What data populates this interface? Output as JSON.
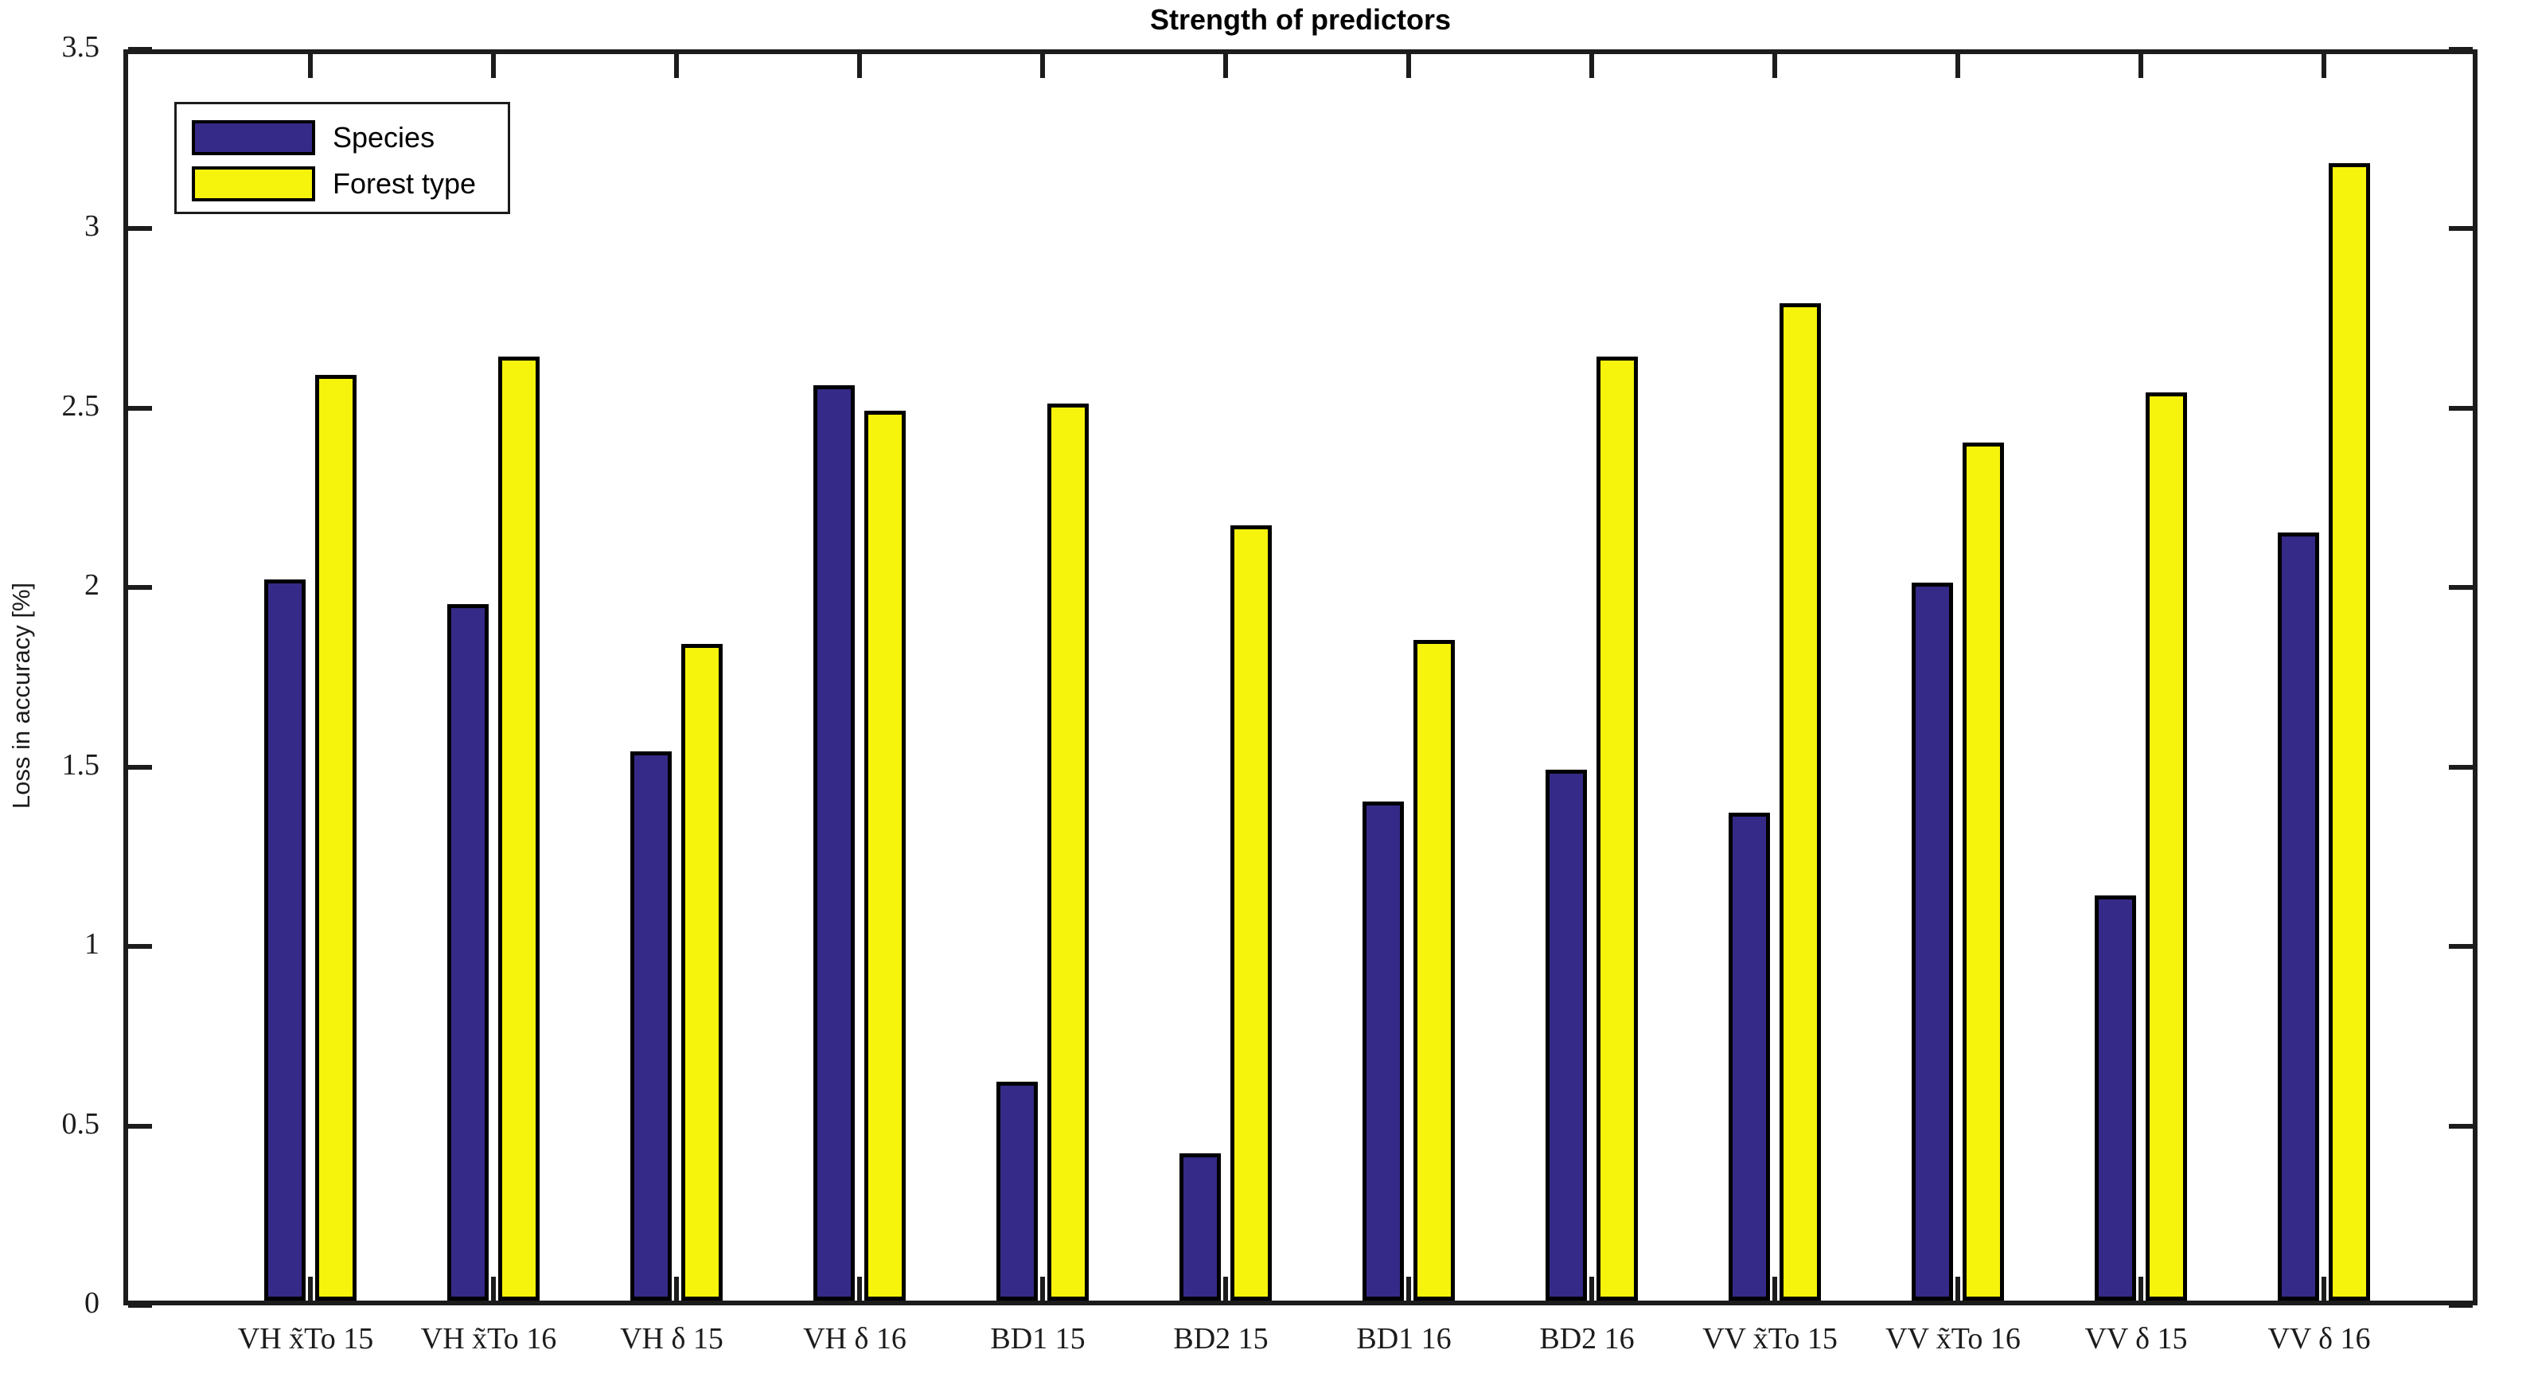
{
  "title": "Strength of predictors",
  "legend": {
    "entries": [
      {
        "label": "Species",
        "color": "#352A87"
      },
      {
        "label": "Forest type",
        "color": "#F6F30D"
      }
    ]
  },
  "colors": {
    "axis": "#1c1c1c",
    "bar_edge": "#000000",
    "background": "#ffffff",
    "species": "#352A87",
    "forest_type": "#F6F30D"
  },
  "chart_data": {
    "type": "bar",
    "title": "Strength of predictors",
    "xlabel": "",
    "ylabel": "Loss in accuracy [%]",
    "ylim": [
      0,
      3.5
    ],
    "ytick_step": 0.5,
    "ytick_labels": [
      "0",
      "0.5",
      "1",
      "1.5",
      "2",
      "2.5",
      "3",
      "3.5"
    ],
    "grid": false,
    "legend_position": "top-left",
    "categories": [
      "VH x̃To 15",
      "VH x̃To 16",
      "VH δ 15",
      "VH δ 16",
      "BD1 15",
      "BD2 15",
      "BD1 16",
      "BD2 16",
      "VV x̃To 15",
      "VV x̃To 16",
      "VV δ 15",
      "VV δ 16"
    ],
    "series": [
      {
        "name": "Species",
        "color": "#352A87",
        "values": [
          2.01,
          1.94,
          1.53,
          2.55,
          0.61,
          0.41,
          1.39,
          1.48,
          1.36,
          2.0,
          1.13,
          2.14
        ]
      },
      {
        "name": "Forest type",
        "color": "#F6F30D",
        "values": [
          2.58,
          2.63,
          1.83,
          2.48,
          2.5,
          2.16,
          1.84,
          2.63,
          2.78,
          2.39,
          2.53,
          3.17
        ]
      }
    ]
  }
}
